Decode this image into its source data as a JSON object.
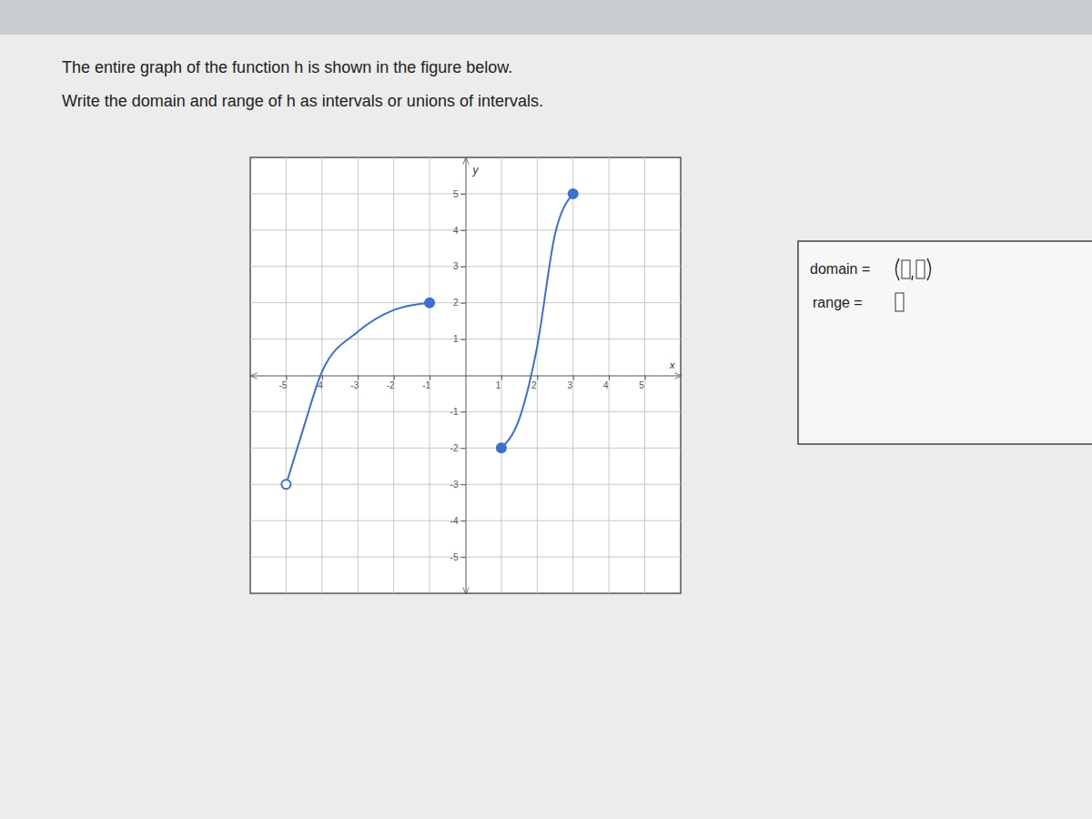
{
  "chart_data": {
    "type": "line",
    "title": "The entire graph of the function h is shown in the figure below.",
    "subtitle": "Write the domain and range of h as intervals or unions of intervals.",
    "annotations": [
      "domain =",
      "range ="
    ],
    "xlabel": "x",
    "ylabel": "y",
    "xlim": [
      -6,
      6
    ],
    "ylim": [
      -6,
      6
    ],
    "xticks": [
      -5,
      -4,
      -3,
      -2,
      -1,
      1,
      2,
      3,
      4,
      5
    ],
    "yticks": [
      -5,
      -4,
      -3,
      -2,
      -1,
      1,
      2,
      3,
      4,
      5
    ],
    "grid": true,
    "series": [
      {
        "color": "#3b6fd4",
        "x": [
          -5,
          -4.5,
          -4,
          -3,
          -2,
          -1
        ],
        "values": [
          -3,
          -1.4,
          0.1,
          1.2,
          1.8,
          2
        ]
      },
      {
        "color": "#3b6fd4",
        "x": [
          1,
          1.5,
          2,
          2.5,
          3
        ],
        "values": [
          -2,
          -1.2,
          0.8,
          3.9,
          5
        ]
      },
      {
        "type": "scatter",
        "marker": "open-circle",
        "color": "#3b6fd4",
        "x": [
          -5
        ],
        "values": [
          -3
        ]
      },
      {
        "type": "scatter",
        "marker": "circle",
        "color": "#3b6fd4",
        "x": [
          -1,
          1,
          3
        ],
        "values": [
          2,
          -2,
          5
        ]
      }
    ]
  }
}
